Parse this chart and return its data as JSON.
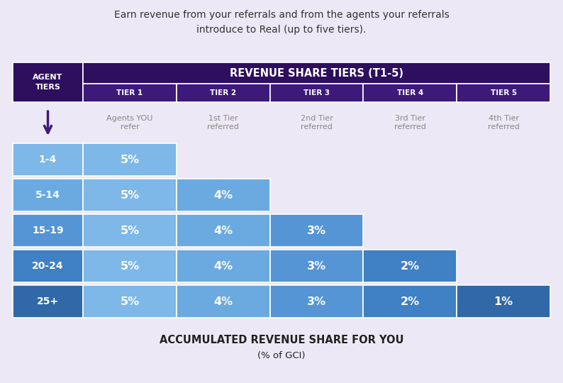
{
  "title_text": "Earn revenue from your referrals and from the agents your referrals\nintroduce to Real (up to five tiers).",
  "bottom_title": "ACCUMULATED REVENUE SHARE FOR YOU",
  "bottom_subtitle": "(% of GCI)",
  "background_color": "#ede8f5",
  "header_bg_color": "#2d0f5e",
  "subheader_bg_color": "#3d1a7a",
  "agent_col_header": "AGENT\nTIERS",
  "revenue_header": "REVENUE SHARE TIERS (T1-5)",
  "tier_labels": [
    "TIER 1",
    "TIER 2",
    "TIER 3",
    "TIER 4",
    "TIER 5"
  ],
  "tier_sublabels": [
    "Agents YOU\nrefer",
    "1st Tier\nreferred",
    "2nd Tier\nreferred",
    "3rd Tier\nreferred",
    "4th Tier\nreferred"
  ],
  "row_labels": [
    "1-4",
    "5-14",
    "15-19",
    "20-24",
    "25+"
  ],
  "data": [
    [
      "5%",
      null,
      null,
      null,
      null
    ],
    [
      "5%",
      "4%",
      null,
      null,
      null
    ],
    [
      "5%",
      "4%",
      "3%",
      null,
      null
    ],
    [
      "5%",
      "4%",
      "3%",
      "2%",
      null
    ],
    [
      "5%",
      "4%",
      "3%",
      "2%",
      "1%"
    ]
  ],
  "row_label_colors": [
    "#7db8e8",
    "#6aaae0",
    "#5595d5",
    "#4080c4",
    "#3068a8"
  ],
  "data_cell_colors": [
    [
      "#7db8e8",
      null,
      null,
      null,
      null
    ],
    [
      "#7db8e8",
      "#6aaae0",
      null,
      null,
      null
    ],
    [
      "#7db8e8",
      "#6aaae0",
      "#5595d5",
      null,
      null
    ],
    [
      "#7db8e8",
      "#6aaae0",
      "#5595d5",
      "#4080c4",
      null
    ],
    [
      "#7db8e8",
      "#6aaae0",
      "#5595d5",
      "#4080c4",
      "#3068a8"
    ]
  ],
  "header_text_color": "#ffffff",
  "sublabel_text_color": "#888888",
  "arrow_color": "#3d1a7a",
  "title_color": "#333333",
  "bottom_title_color": "#222222",
  "fig_width": 7.94,
  "fig_height": 5.4,
  "dpi": 100
}
